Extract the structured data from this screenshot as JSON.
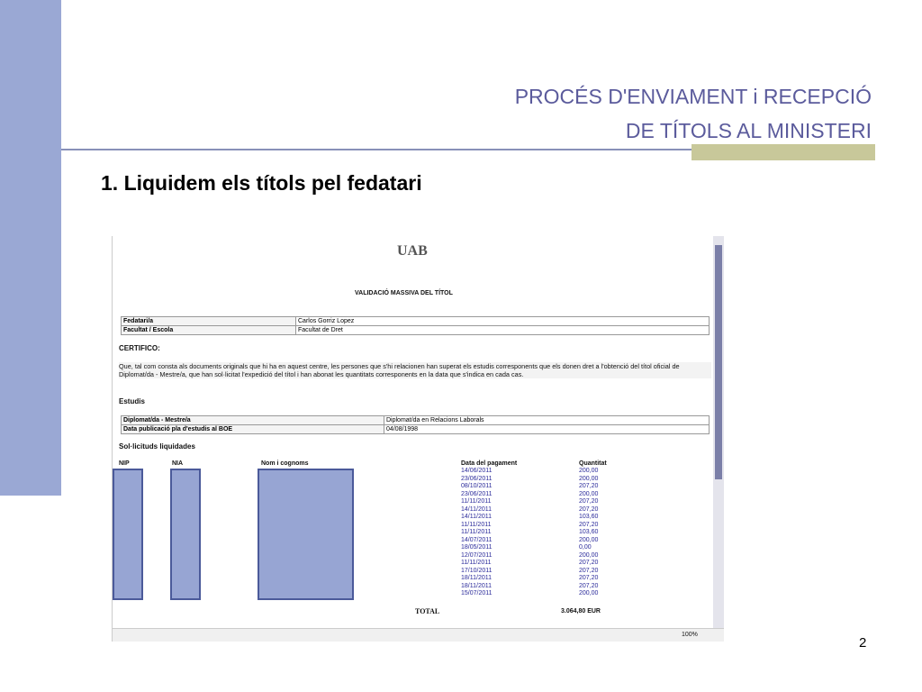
{
  "slide": {
    "title_lines": [
      "PROCÉS D'ENVIAMENT i RECEPCIÓ",
      "DE  TÍTOLS AL MINISTERI"
    ],
    "heading": "1. Liquidem els títols pel fedatari",
    "page_number": "2",
    "screenshot": {
      "logo": "UAB",
      "doc_title": "VALIDACIÓ MASSIVA DEL TÍTOL",
      "info_table": [
        [
          "Fedatari/a",
          "Carlos Gorriz Lopez"
        ],
        [
          "Facultat / Escola",
          "Facultat de Dret"
        ]
      ],
      "certifico": "CERTIFICO:",
      "paragraph": "Que, tal com consta als documents originals que hi ha en aquest centre, les persones que s'hi relacionen han superat els estudis corresponents que els donen dret a l'obtenció del títol oficial de Diplomat/da - Mestre/a, que han sol·licitat l'expedició del títol i han abonat les quantitats corresponents en la data que s'indica en cada cas.",
      "studies_heading": "Estudis",
      "studies_table": [
        [
          "Diplomat/da - Mestre/a",
          "Diplomat/da en Relacions Laborals"
        ],
        [
          "Data publicació pla d'estudis al BOE",
          "04/08/1998"
        ]
      ],
      "requests_heading": "Sol·licituds liquidades",
      "columns": [
        "NIP",
        "NIA",
        "Nom i cognoms",
        "Data del pagament",
        "Quantitat"
      ],
      "payments": [
        [
          "14/06/2011",
          "200,00"
        ],
        [
          "23/06/2011",
          "200,00"
        ],
        [
          "08/10/2011",
          "207,20"
        ],
        [
          "23/06/2011",
          "200,00"
        ],
        [
          "11/11/2011",
          "207,20"
        ],
        [
          "14/11/2011",
          "207,20"
        ],
        [
          "14/11/2011",
          "103,60"
        ],
        [
          "11/11/2011",
          "207,20"
        ],
        [
          "11/11/2011",
          "103,60"
        ],
        [
          "14/07/2011",
          "200,00"
        ],
        [
          "18/05/2011",
          "0,00"
        ],
        [
          "12/07/2011",
          "200,00"
        ],
        [
          "11/11/2011",
          "207,20"
        ],
        [
          "17/10/2011",
          "207,20"
        ],
        [
          "18/11/2011",
          "207,20"
        ],
        [
          "18/11/2011",
          "207,20"
        ],
        [
          "15/07/2011",
          "200,00"
        ]
      ],
      "total_label": "TOTAL",
      "total_amount": "3.064,80 EUR",
      "zoom": "100%"
    }
  }
}
